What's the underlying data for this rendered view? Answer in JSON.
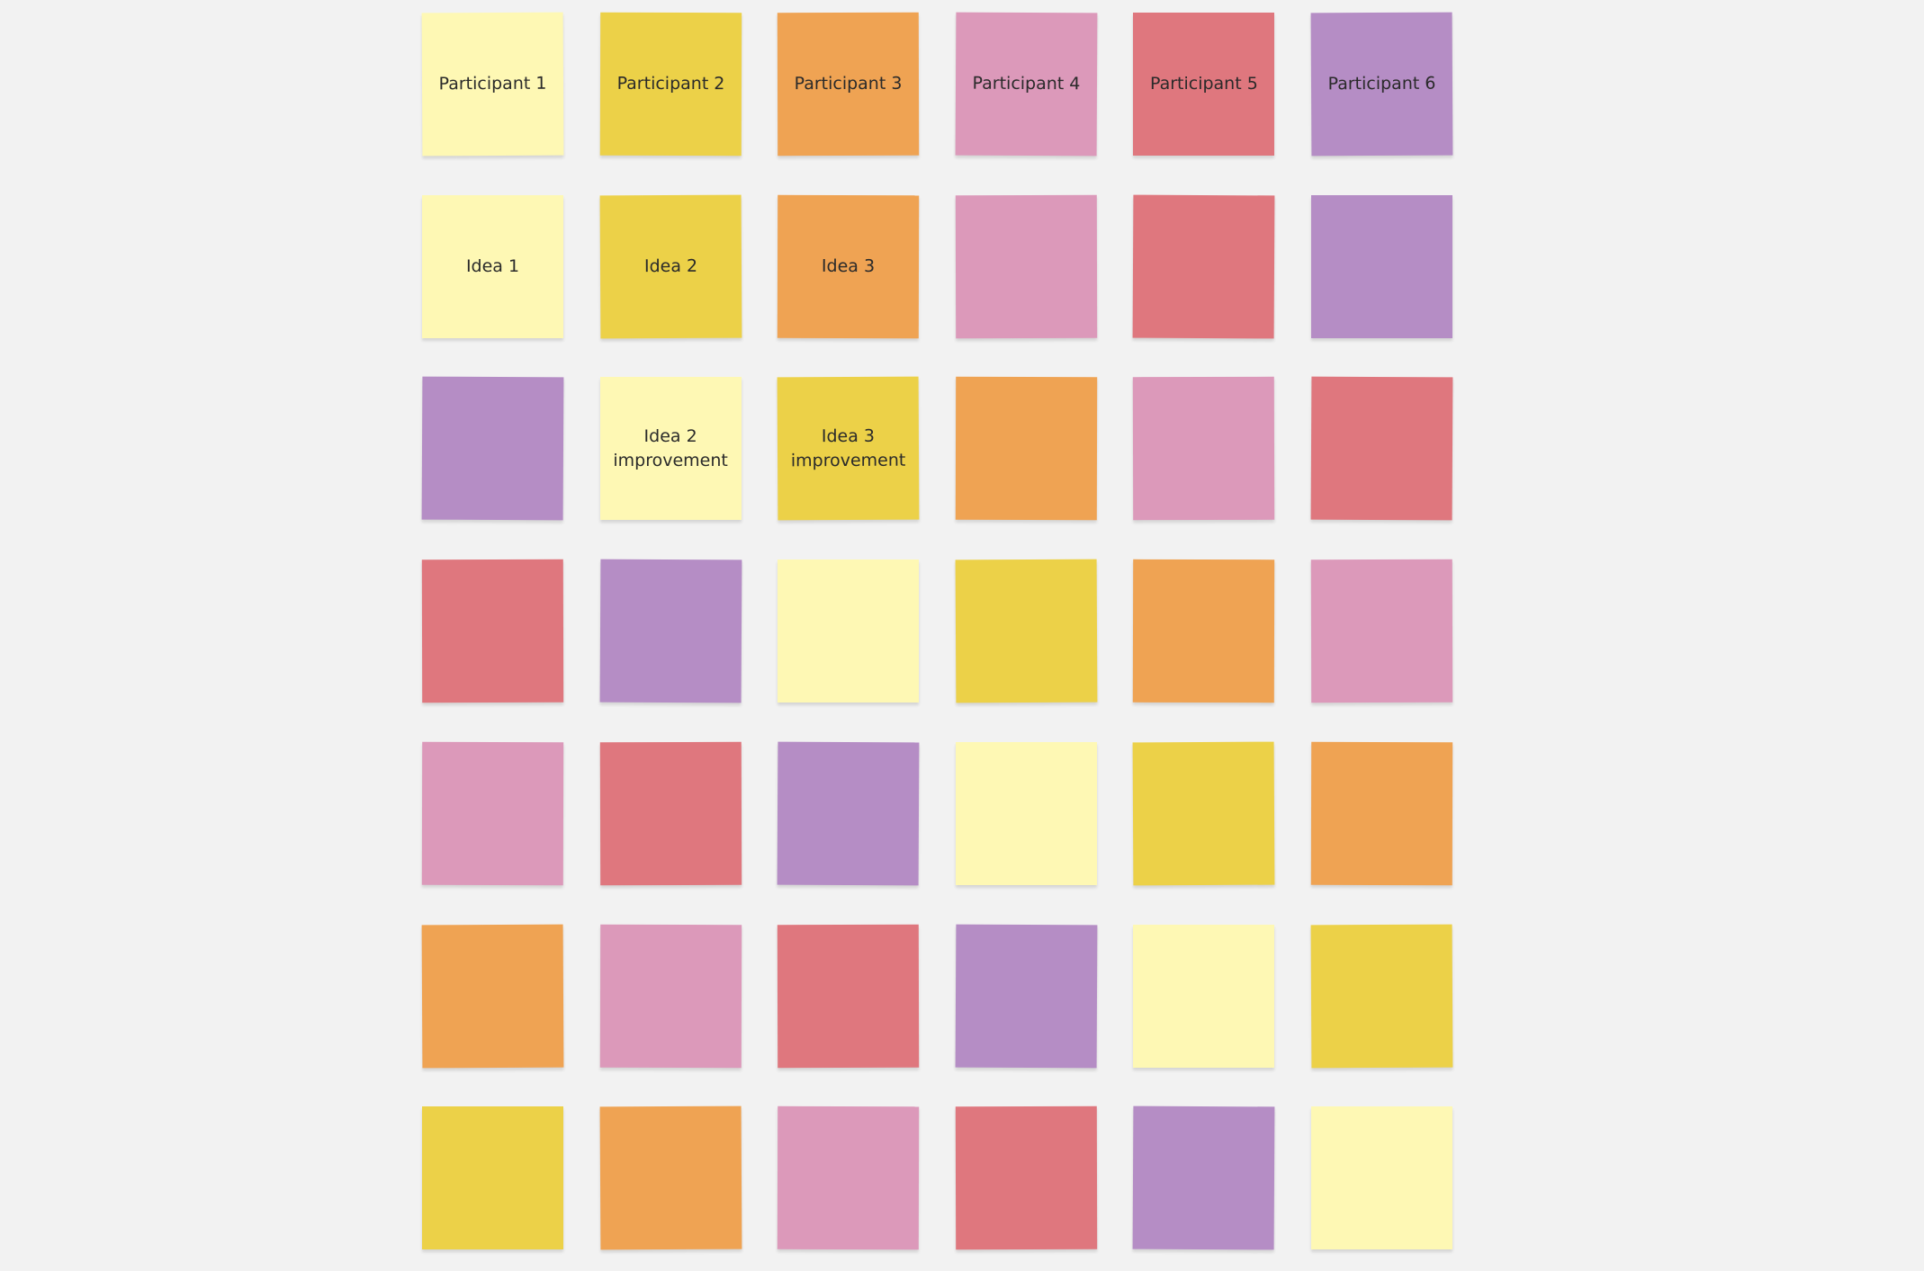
{
  "palette": {
    "light_yellow": "#fef8b4",
    "yellow": "#ecd148",
    "orange": "#efa353",
    "pink": "#dc99ba",
    "red": "#df777e",
    "purple": "#b58dc5",
    "background": "#f2f2f2"
  },
  "rows": [
    [
      {
        "color": "light_yellow",
        "text": "Participant 1"
      },
      {
        "color": "yellow",
        "text": "Participant 2"
      },
      {
        "color": "orange",
        "text": "Participant 3"
      },
      {
        "color": "pink",
        "text": "Participant 4"
      },
      {
        "color": "red",
        "text": "Participant 5"
      },
      {
        "color": "purple",
        "text": "Participant 6"
      }
    ],
    [
      {
        "color": "light_yellow",
        "text": "Idea 1"
      },
      {
        "color": "yellow",
        "text": "Idea 2"
      },
      {
        "color": "orange",
        "text": "Idea 3"
      },
      {
        "color": "pink",
        "text": ""
      },
      {
        "color": "red",
        "text": ""
      },
      {
        "color": "purple",
        "text": ""
      }
    ],
    [
      {
        "color": "purple",
        "text": ""
      },
      {
        "color": "light_yellow",
        "text": "Idea 2 improvement"
      },
      {
        "color": "yellow",
        "text": "Idea 3 improvement"
      },
      {
        "color": "orange",
        "text": ""
      },
      {
        "color": "pink",
        "text": ""
      },
      {
        "color": "red",
        "text": ""
      }
    ],
    [
      {
        "color": "red",
        "text": ""
      },
      {
        "color": "purple",
        "text": ""
      },
      {
        "color": "light_yellow",
        "text": ""
      },
      {
        "color": "yellow",
        "text": ""
      },
      {
        "color": "orange",
        "text": ""
      },
      {
        "color": "pink",
        "text": ""
      }
    ],
    [
      {
        "color": "pink",
        "text": ""
      },
      {
        "color": "red",
        "text": ""
      },
      {
        "color": "purple",
        "text": ""
      },
      {
        "color": "light_yellow",
        "text": ""
      },
      {
        "color": "yellow",
        "text": ""
      },
      {
        "color": "orange",
        "text": ""
      }
    ],
    [
      {
        "color": "orange",
        "text": ""
      },
      {
        "color": "pink",
        "text": ""
      },
      {
        "color": "red",
        "text": ""
      },
      {
        "color": "purple",
        "text": ""
      },
      {
        "color": "light_yellow",
        "text": ""
      },
      {
        "color": "yellow",
        "text": ""
      }
    ],
    [
      {
        "color": "yellow",
        "text": ""
      },
      {
        "color": "orange",
        "text": ""
      },
      {
        "color": "pink",
        "text": ""
      },
      {
        "color": "red",
        "text": ""
      },
      {
        "color": "purple",
        "text": ""
      },
      {
        "color": "light_yellow",
        "text": ""
      }
    ]
  ]
}
